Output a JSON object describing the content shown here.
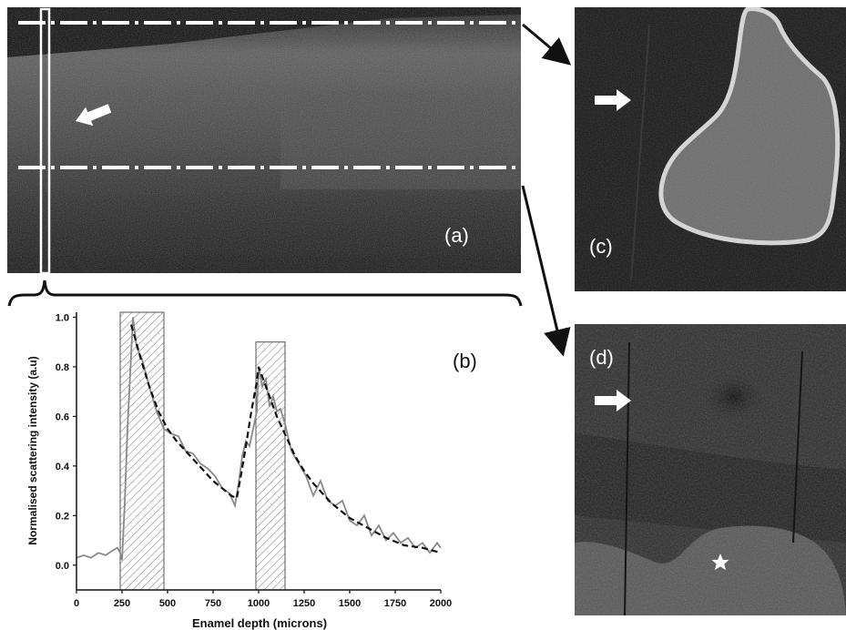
{
  "figure": {
    "panel_a_label": "(a)",
    "panel_b_label": "(b)",
    "panel_c_label": "(c)",
    "panel_d_label": "(d)",
    "colors": {
      "oct_background": "#1a1a1a",
      "mark_white": "#ffffff",
      "hatch_gray": "#777777",
      "curve_gray": "#8a8a8a",
      "fit_black": "#111111"
    },
    "icons": [
      "white-arrow-icon",
      "white-star-icon",
      "black-arrow-icon",
      "bracket"
    ]
  },
  "chart_data": {
    "type": "line",
    "xlabel": "Enamel depth (microns)",
    "ylabel": "Normalised scattering intensity (a.u)",
    "xlim": [
      0,
      2000
    ],
    "ylim": [
      -0.1,
      1.02
    ],
    "xticks": [
      "0",
      "250",
      "500",
      "750",
      "1000",
      "1250",
      "1500",
      "1750",
      "2000"
    ],
    "yticks": [
      "0.0",
      "0.2",
      "0.4",
      "0.6",
      "0.8",
      "1.0"
    ],
    "grid": false,
    "highlight_regions": [
      {
        "x": [
          240,
          480
        ],
        "ymax": 1.02
      },
      {
        "x": [
          985,
          1145
        ],
        "ymax": 0.9
      }
    ],
    "series": [
      {
        "style": "solid-gray",
        "x": [
          0,
          40,
          80,
          120,
          160,
          200,
          225,
          240,
          250,
          265,
          280,
          300,
          310,
          330,
          360,
          400,
          440,
          480,
          520,
          560,
          600,
          640,
          680,
          720,
          760,
          800,
          840,
          870,
          890,
          910,
          930,
          950,
          970,
          990,
          1000,
          1020,
          1040,
          1060,
          1080,
          1100,
          1120,
          1145,
          1180,
          1220,
          1260,
          1300,
          1340,
          1380,
          1420,
          1460,
          1500,
          1540,
          1580,
          1620,
          1660,
          1700,
          1740,
          1780,
          1820,
          1860,
          1900,
          1940,
          1980,
          2000
        ],
        "y": [
          0.03,
          0.04,
          0.03,
          0.05,
          0.04,
          0.06,
          0.07,
          0.05,
          0.02,
          0.25,
          0.55,
          0.85,
          1.0,
          0.88,
          0.83,
          0.72,
          0.62,
          0.55,
          0.53,
          0.52,
          0.46,
          0.45,
          0.41,
          0.39,
          0.36,
          0.31,
          0.29,
          0.24,
          0.33,
          0.44,
          0.5,
          0.48,
          0.55,
          0.62,
          0.8,
          0.72,
          0.75,
          0.64,
          0.68,
          0.62,
          0.63,
          0.57,
          0.46,
          0.41,
          0.36,
          0.28,
          0.34,
          0.26,
          0.24,
          0.26,
          0.18,
          0.16,
          0.2,
          0.12,
          0.16,
          0.1,
          0.13,
          0.09,
          0.11,
          0.07,
          0.09,
          0.05,
          0.09,
          0.07
        ]
      },
      {
        "style": "dashed-black",
        "x": [
          300,
          320,
          350,
          400,
          450,
          500,
          550,
          600,
          650,
          700,
          750,
          800,
          850,
          880,
          900,
          930,
          960,
          990,
          1000,
          1050,
          1100,
          1150,
          1200,
          1250,
          1300,
          1400,
          1500,
          1600,
          1700,
          1800,
          1900,
          2000
        ],
        "y": [
          0.97,
          0.92,
          0.84,
          0.72,
          0.62,
          0.55,
          0.5,
          0.46,
          0.42,
          0.38,
          0.34,
          0.31,
          0.28,
          0.27,
          0.35,
          0.48,
          0.62,
          0.74,
          0.8,
          0.7,
          0.6,
          0.52,
          0.44,
          0.38,
          0.33,
          0.25,
          0.19,
          0.15,
          0.11,
          0.08,
          0.07,
          0.05
        ]
      }
    ]
  }
}
